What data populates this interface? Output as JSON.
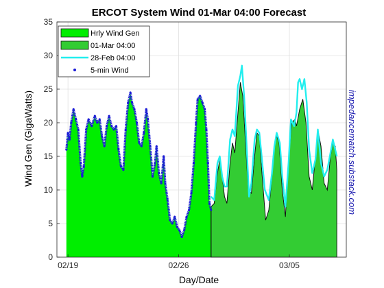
{
  "chart_data": {
    "type": "area",
    "title": "ERCOT System Wind  01-Mar 04:00 Forecast",
    "xlabel": "Day/Date",
    "ylabel": "Wind Gen (GigaWatts)",
    "side_note": "impedancematch.substack.com",
    "x_unit": "days since 18-Feb 00:00",
    "xlim": [
      18.3,
      36.6
    ],
    "ylim": [
      0,
      35
    ],
    "yticks": [
      0,
      5,
      10,
      15,
      20,
      25,
      30,
      35
    ],
    "xticks": [
      {
        "x": 19,
        "label": "02/19"
      },
      {
        "x": 26,
        "label": "02/26"
      },
      {
        "x": 33,
        "label": "03/05"
      }
    ],
    "grid": true,
    "legend_position": "top-left",
    "legend": [
      {
        "label": "Hrly Wind Gen",
        "kind": "patch",
        "color": "#00ee00"
      },
      {
        "label": "01-Mar 04:00",
        "kind": "patch",
        "color": "#33cc33"
      },
      {
        "label": "28-Feb 04:00",
        "kind": "line",
        "color": "#22eeee"
      },
      {
        "label": "5-min Wind",
        "kind": "dots",
        "color": "#1a1ad6"
      }
    ],
    "series": [
      {
        "name": "Hrly Wind Gen",
        "color": "#00ee00",
        "points": [
          [
            18.9,
            16.0
          ],
          [
            19.0,
            18.5
          ],
          [
            19.1,
            17.5
          ],
          [
            19.2,
            20.0
          ],
          [
            19.35,
            22.0
          ],
          [
            19.5,
            20.5
          ],
          [
            19.65,
            19.0
          ],
          [
            19.8,
            14.0
          ],
          [
            19.9,
            12.0
          ],
          [
            20.0,
            13.5
          ],
          [
            20.15,
            19.0
          ],
          [
            20.3,
            20.5
          ],
          [
            20.5,
            19.5
          ],
          [
            20.7,
            21.0
          ],
          [
            20.85,
            20.0
          ],
          [
            21.0,
            20.5
          ],
          [
            21.15,
            18.0
          ],
          [
            21.3,
            16.5
          ],
          [
            21.45,
            19.5
          ],
          [
            21.6,
            21.0
          ],
          [
            21.75,
            19.5
          ],
          [
            21.9,
            19.0
          ],
          [
            22.05,
            19.5
          ],
          [
            22.2,
            16.0
          ],
          [
            22.35,
            13.5
          ],
          [
            22.5,
            13.0
          ],
          [
            22.65,
            19.0
          ],
          [
            22.8,
            23.0
          ],
          [
            22.95,
            24.5
          ],
          [
            23.05,
            23.0
          ],
          [
            23.2,
            22.0
          ],
          [
            23.35,
            20.0
          ],
          [
            23.5,
            17.0
          ],
          [
            23.65,
            16.5
          ],
          [
            23.8,
            18.5
          ],
          [
            23.95,
            22.0
          ],
          [
            24.05,
            20.5
          ],
          [
            24.2,
            16.5
          ],
          [
            24.35,
            12.0
          ],
          [
            24.5,
            14.0
          ],
          [
            24.6,
            16.5
          ],
          [
            24.75,
            12.5
          ],
          [
            24.9,
            11.0
          ],
          [
            25.05,
            15.0
          ],
          [
            25.15,
            11.0
          ],
          [
            25.3,
            8.5
          ],
          [
            25.45,
            5.5
          ],
          [
            25.6,
            5.0
          ],
          [
            25.75,
            6.0
          ],
          [
            25.9,
            4.5
          ],
          [
            26.05,
            4.0
          ],
          [
            26.2,
            3.0
          ],
          [
            26.35,
            4.0
          ],
          [
            26.5,
            6.0
          ],
          [
            26.65,
            7.0
          ],
          [
            26.8,
            9.5
          ],
          [
            26.95,
            14.0
          ],
          [
            27.1,
            20.0
          ],
          [
            27.2,
            23.5
          ],
          [
            27.35,
            24.0
          ],
          [
            27.5,
            23.0
          ],
          [
            27.65,
            22.0
          ],
          [
            27.75,
            19.0
          ],
          [
            27.85,
            14.0
          ],
          [
            27.95,
            8.0
          ],
          [
            28.05,
            7.0
          ]
        ]
      },
      {
        "name": "01-Mar 04:00",
        "color": "#33cc33",
        "points": [
          [
            28.05,
            7.5
          ],
          [
            28.25,
            8.0
          ],
          [
            28.45,
            12.5
          ],
          [
            28.6,
            14.5
          ],
          [
            28.75,
            12.0
          ],
          [
            28.9,
            9.0
          ],
          [
            29.05,
            8.0
          ],
          [
            29.25,
            14.0
          ],
          [
            29.4,
            17.0
          ],
          [
            29.55,
            15.5
          ],
          [
            29.75,
            21.5
          ],
          [
            29.9,
            26.0
          ],
          [
            30.05,
            24.0
          ],
          [
            30.25,
            16.0
          ],
          [
            30.4,
            10.0
          ],
          [
            30.6,
            9.5
          ],
          [
            30.8,
            15.0
          ],
          [
            30.95,
            18.5
          ],
          [
            31.1,
            18.0
          ],
          [
            31.25,
            13.0
          ],
          [
            31.5,
            5.5
          ],
          [
            31.7,
            7.0
          ],
          [
            31.9,
            12.0
          ],
          [
            32.05,
            16.5
          ],
          [
            32.2,
            18.0
          ],
          [
            32.35,
            17.0
          ],
          [
            32.55,
            10.0
          ],
          [
            32.75,
            6.0
          ],
          [
            32.95,
            14.5
          ],
          [
            33.15,
            20.0
          ],
          [
            33.35,
            20.5
          ],
          [
            33.45,
            19.5
          ],
          [
            33.65,
            22.0
          ],
          [
            33.85,
            23.5
          ],
          [
            34.05,
            20.0
          ],
          [
            34.25,
            12.0
          ],
          [
            34.45,
            10.0
          ],
          [
            34.65,
            15.0
          ],
          [
            34.8,
            19.0
          ],
          [
            35.0,
            16.5
          ],
          [
            35.2,
            11.0
          ],
          [
            35.4,
            10.0
          ],
          [
            35.6,
            15.0
          ],
          [
            35.75,
            17.0
          ],
          [
            35.9,
            16.5
          ],
          [
            36.0,
            13.0
          ]
        ]
      },
      {
        "name": "28-Feb 04:00",
        "color": "#22eeee",
        "points": [
          [
            28.05,
            9.0
          ],
          [
            28.25,
            8.5
          ],
          [
            28.45,
            14.0
          ],
          [
            28.6,
            15.0
          ],
          [
            28.75,
            12.0
          ],
          [
            28.9,
            10.5
          ],
          [
            29.05,
            10.5
          ],
          [
            29.25,
            17.5
          ],
          [
            29.4,
            19.0
          ],
          [
            29.55,
            18.0
          ],
          [
            29.75,
            25.5
          ],
          [
            29.9,
            27.0
          ],
          [
            30.0,
            28.5
          ],
          [
            30.15,
            23.5
          ],
          [
            30.3,
            16.5
          ],
          [
            30.45,
            9.0
          ],
          [
            30.6,
            11.0
          ],
          [
            30.8,
            17.5
          ],
          [
            30.95,
            19.0
          ],
          [
            31.1,
            18.5
          ],
          [
            31.25,
            15.0
          ],
          [
            31.45,
            10.0
          ],
          [
            31.7,
            8.5
          ],
          [
            31.9,
            12.5
          ],
          [
            32.05,
            16.5
          ],
          [
            32.2,
            18.5
          ],
          [
            32.4,
            17.0
          ],
          [
            32.55,
            12.0
          ],
          [
            32.75,
            7.5
          ],
          [
            32.95,
            14.0
          ],
          [
            33.1,
            20.5
          ],
          [
            33.3,
            19.5
          ],
          [
            33.45,
            21.5
          ],
          [
            33.55,
            26.0
          ],
          [
            33.65,
            26.5
          ],
          [
            33.8,
            25.0
          ],
          [
            33.95,
            26.5
          ],
          [
            34.1,
            23.0
          ],
          [
            34.25,
            16.0
          ],
          [
            34.45,
            12.5
          ],
          [
            34.65,
            14.5
          ],
          [
            34.8,
            19.0
          ],
          [
            35.0,
            14.0
          ],
          [
            35.2,
            12.0
          ],
          [
            35.4,
            13.0
          ],
          [
            35.6,
            15.5
          ],
          [
            35.75,
            17.5
          ],
          [
            35.9,
            16.0
          ],
          [
            36.0,
            15.0
          ]
        ]
      },
      {
        "name": "5-min Wind",
        "color": "#1a1ad6",
        "points": [
          [
            18.9,
            16.0
          ],
          [
            19.0,
            18.5
          ],
          [
            19.1,
            17.5
          ],
          [
            19.2,
            20.0
          ],
          [
            19.35,
            22.0
          ],
          [
            19.5,
            20.5
          ],
          [
            19.65,
            19.0
          ],
          [
            19.8,
            14.0
          ],
          [
            19.9,
            12.0
          ],
          [
            20.0,
            13.5
          ],
          [
            20.15,
            19.0
          ],
          [
            20.3,
            20.5
          ],
          [
            20.5,
            19.5
          ],
          [
            20.7,
            21.0
          ],
          [
            20.85,
            20.0
          ],
          [
            21.0,
            20.5
          ],
          [
            21.15,
            18.0
          ],
          [
            21.3,
            16.5
          ],
          [
            21.45,
            19.5
          ],
          [
            21.6,
            21.0
          ],
          [
            21.75,
            19.5
          ],
          [
            21.9,
            19.0
          ],
          [
            22.05,
            19.5
          ],
          [
            22.2,
            16.0
          ],
          [
            22.35,
            13.5
          ],
          [
            22.5,
            13.0
          ],
          [
            22.65,
            19.0
          ],
          [
            22.8,
            23.0
          ],
          [
            22.95,
            24.5
          ],
          [
            23.05,
            23.0
          ],
          [
            23.2,
            22.0
          ],
          [
            23.35,
            20.0
          ],
          [
            23.5,
            17.0
          ],
          [
            23.65,
            16.5
          ],
          [
            23.8,
            18.5
          ],
          [
            23.95,
            22.0
          ],
          [
            24.05,
            20.5
          ],
          [
            24.2,
            16.5
          ],
          [
            24.35,
            12.0
          ],
          [
            24.5,
            14.0
          ],
          [
            24.6,
            16.5
          ],
          [
            24.75,
            12.5
          ],
          [
            24.9,
            11.0
          ],
          [
            25.05,
            15.0
          ],
          [
            25.15,
            11.0
          ],
          [
            25.3,
            8.5
          ],
          [
            25.45,
            5.5
          ],
          [
            25.6,
            5.0
          ],
          [
            25.75,
            6.0
          ],
          [
            25.9,
            4.5
          ],
          [
            26.05,
            4.0
          ],
          [
            26.2,
            3.0
          ],
          [
            26.35,
            4.0
          ],
          [
            26.5,
            6.0
          ],
          [
            26.65,
            7.0
          ],
          [
            26.8,
            9.5
          ],
          [
            26.95,
            14.0
          ],
          [
            27.1,
            20.0
          ],
          [
            27.2,
            23.5
          ],
          [
            27.35,
            24.0
          ],
          [
            27.5,
            23.0
          ],
          [
            27.65,
            22.0
          ],
          [
            27.75,
            19.0
          ],
          [
            27.85,
            14.0
          ],
          [
            27.95,
            8.0
          ],
          [
            28.05,
            7.0
          ]
        ]
      }
    ]
  }
}
